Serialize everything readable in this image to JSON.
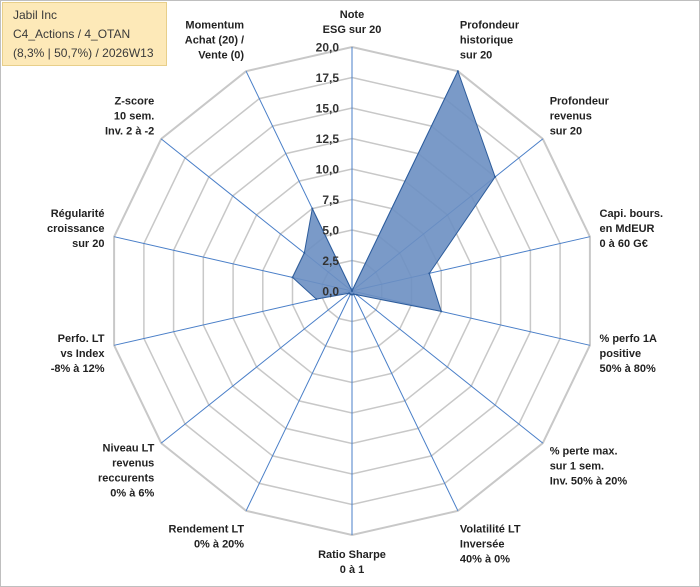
{
  "info": {
    "company": "Jabil Inc",
    "portfolio": "C4_Actions / 4_OTAN",
    "stats": "(8,3% | 50,7%) / 2026W13"
  },
  "chart_data": {
    "type": "radar",
    "title": "Jabil Inc",
    "rmax": 20,
    "ticks": [
      "0,0",
      "2,5",
      "5,0",
      "7,5",
      "10,0",
      "12,5",
      "15,0",
      "17,5",
      "20,0"
    ],
    "axes": [
      {
        "label": [
          "Note",
          "ESG sur 20"
        ],
        "value": 0
      },
      {
        "label": [
          "Profondeur",
          "historique",
          "sur 20"
        ],
        "value": 20
      },
      {
        "label": [
          "Profondeur",
          "revenus",
          "sur 20"
        ],
        "value": 15
      },
      {
        "label": [
          "Capi. bours.",
          "en MdEUR",
          "0 à 60 G€"
        ],
        "value": 6.5
      },
      {
        "label": [
          "% perfo 1A",
          "positive",
          "50% à 80%"
        ],
        "value": 7.5
      },
      {
        "label": [
          "% perte max.",
          "sur 1 sem.",
          "Inv. 50% à 20%"
        ],
        "value": 0.5
      },
      {
        "label": [
          "Volatilité LT",
          "Inversée",
          "40% à 0%"
        ],
        "value": 0.3
      },
      {
        "label": [
          "Ratio Sharpe",
          "0 à 1"
        ],
        "value": 0.3
      },
      {
        "label": [
          "Rendement LT",
          "0% à 20%"
        ],
        "value": 0.3
      },
      {
        "label": [
          "Niveau LT",
          "revenus",
          "reccurents",
          "0% à 6%"
        ],
        "value": 0.3
      },
      {
        "label": [
          "Perfo. LT",
          "vs Index",
          "-8% à 12%"
        ],
        "value": 3
      },
      {
        "label": [
          "Régularité",
          "croissance",
          "sur 20"
        ],
        "value": 5
      },
      {
        "label": [
          "Z-score",
          "10 sem.",
          "Inv. 2 à -2"
        ],
        "value": 5
      },
      {
        "label": [
          "Momentum",
          "Achat (20) /",
          "Vente (0)"
        ],
        "value": 7.5
      }
    ],
    "colors": {
      "fill": "#6b8fc2",
      "stroke": "#2e5d9c",
      "grid": "#c8c8c8",
      "spoke": "#4a7fc8"
    }
  }
}
